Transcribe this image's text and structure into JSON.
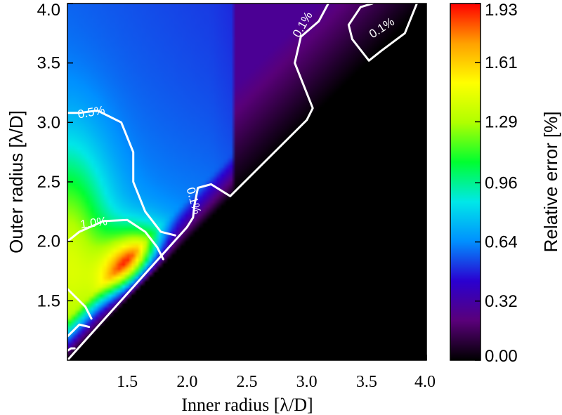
{
  "chart_data": {
    "type": "heatmap",
    "xlabel": "Inner radius [λ/D]",
    "ylabel": "Outer radius [λ/D]",
    "xlim": [
      1.0,
      4.0
    ],
    "ylim": [
      1.0,
      4.0
    ],
    "x_ticks": [
      "1.5",
      "2.0",
      "2.5",
      "3.0",
      "3.5",
      "4.0"
    ],
    "y_ticks": [
      "1.5",
      "2.0",
      "2.5",
      "3.0",
      "3.5",
      "4.0"
    ],
    "masked_region": "outer radius <= inner radius (black)",
    "hotspot": {
      "x": 1.6,
      "y": 1.7,
      "value": 1.93
    },
    "colorbar": {
      "label": "Relative error [%]",
      "range": [
        0.0,
        1.93
      ],
      "ticks": [
        "0.00",
        "0.32",
        "0.64",
        "0.96",
        "1.29",
        "1.61",
        "1.93"
      ],
      "colors": [
        "#000000",
        "#5a007a",
        "#2a00d0",
        "#0090ff",
        "#00e8e8",
        "#00ff30",
        "#b0ff00",
        "#ffff00",
        "#ffa000",
        "#ff0000"
      ]
    },
    "contours": [
      {
        "level": 0.1,
        "label": "0.1%",
        "points": [
          [
            2.0,
            2.12
          ],
          [
            2.05,
            2.2
          ],
          [
            2.06,
            2.3
          ],
          [
            2.09,
            2.45
          ],
          [
            2.2,
            2.48
          ],
          [
            2.36,
            2.38
          ],
          [
            3.0,
            3.02
          ],
          [
            3.05,
            3.12
          ],
          [
            2.9,
            3.5
          ],
          [
            2.95,
            3.72
          ],
          [
            3.1,
            3.85
          ],
          [
            3.18,
            4.0
          ]
        ]
      },
      {
        "level": 0.1,
        "label": "0.1%",
        "points": [
          [
            3.55,
            4.0
          ],
          [
            3.45,
            3.97
          ],
          [
            3.35,
            3.82
          ],
          [
            3.38,
            3.7
          ],
          [
            3.52,
            3.52
          ],
          [
            3.62,
            3.6
          ],
          [
            3.82,
            3.75
          ],
          [
            3.92,
            4.0
          ]
        ]
      },
      {
        "level": 0.5,
        "label": "0.5%",
        "points": [
          [
            1.0,
            3.08
          ],
          [
            1.1,
            3.08
          ],
          [
            1.25,
            3.1
          ],
          [
            1.45,
            3.0
          ],
          [
            1.55,
            2.75
          ],
          [
            1.55,
            2.5
          ],
          [
            1.65,
            2.25
          ],
          [
            1.78,
            2.08
          ],
          [
            1.9,
            2.05
          ]
        ]
      },
      {
        "level": 1.0,
        "label": "1.0%",
        "points": [
          [
            1.0,
            2.0
          ],
          [
            1.1,
            2.08
          ],
          [
            1.3,
            2.17
          ],
          [
            1.5,
            2.18
          ],
          [
            1.65,
            2.08
          ],
          [
            1.75,
            1.95
          ],
          [
            1.8,
            1.85
          ]
        ]
      },
      {
        "level": 1.5,
        "label": "",
        "points": [
          [
            1.0,
            1.6
          ],
          [
            1.05,
            1.55
          ],
          [
            1.15,
            1.45
          ],
          [
            1.2,
            1.35
          ]
        ]
      },
      {
        "level": 1.5,
        "label": "",
        "points": [
          [
            1.0,
            1.2
          ],
          [
            1.05,
            1.25
          ],
          [
            1.1,
            1.3
          ],
          [
            1.18,
            1.28
          ]
        ]
      },
      {
        "level": 1.8,
        "label": "",
        "points": [
          [
            1.0,
            1.08
          ],
          [
            1.03,
            1.1
          ],
          [
            1.06,
            1.1
          ]
        ]
      }
    ],
    "contour_labels": [
      {
        "text": "0.1%",
        "x": 2.97,
        "y": 3.82,
        "angle": -60
      },
      {
        "text": "0.1%",
        "x": 3.63,
        "y": 3.79,
        "angle": -33
      },
      {
        "text": "0.1%",
        "x": 2.05,
        "y": 2.34,
        "angle": 75
      },
      {
        "text": "0.5%",
        "x": 1.2,
        "y": 3.08,
        "angle": -10
      },
      {
        "text": "1.0%",
        "x": 1.22,
        "y": 2.15,
        "angle": -8
      }
    ]
  }
}
